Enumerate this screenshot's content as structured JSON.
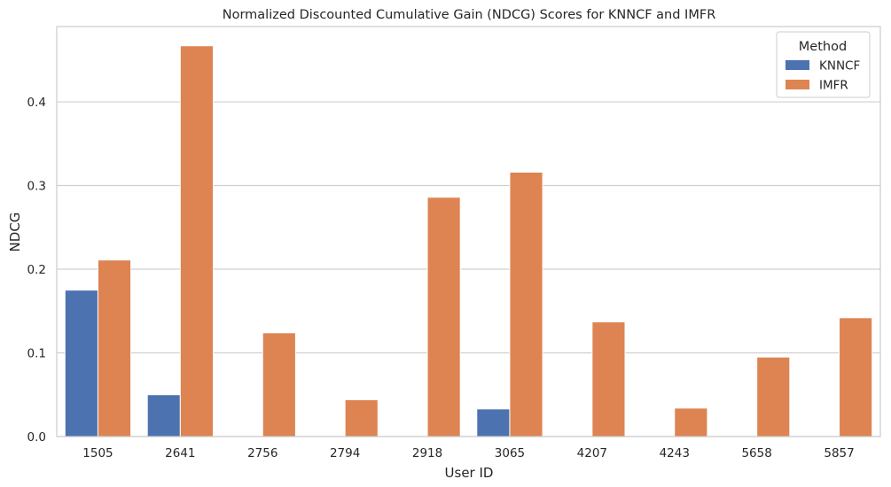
{
  "chart_data": {
    "type": "bar",
    "title": "Normalized Discounted Cumulative Gain (NDCG) Scores for KNNCF and IMFR",
    "xlabel": "User ID",
    "ylabel": "NDCG",
    "categories": [
      "1505",
      "2641",
      "2756",
      "2794",
      "2918",
      "3065",
      "4207",
      "4243",
      "5658",
      "5857"
    ],
    "series": [
      {
        "name": "KNNCF",
        "color": "#4c72b0",
        "values": [
          0.175,
          0.05,
          0.0,
          0.0,
          0.0,
          0.033,
          0.0,
          0.0,
          0.0,
          0.0
        ]
      },
      {
        "name": "IMFR",
        "color": "#dd8452",
        "values": [
          0.211,
          0.467,
          0.124,
          0.044,
          0.286,
          0.316,
          0.137,
          0.034,
          0.095,
          0.142
        ]
      }
    ],
    "ylim": [
      0,
      0.49
    ],
    "yticks": [
      0.0,
      0.1,
      0.2,
      0.3,
      0.4
    ],
    "yticklabels": [
      "0.0",
      "0.1",
      "0.2",
      "0.3",
      "0.4"
    ],
    "grid": "horizontal",
    "legend": {
      "title": "Method",
      "position": "top-right"
    }
  }
}
